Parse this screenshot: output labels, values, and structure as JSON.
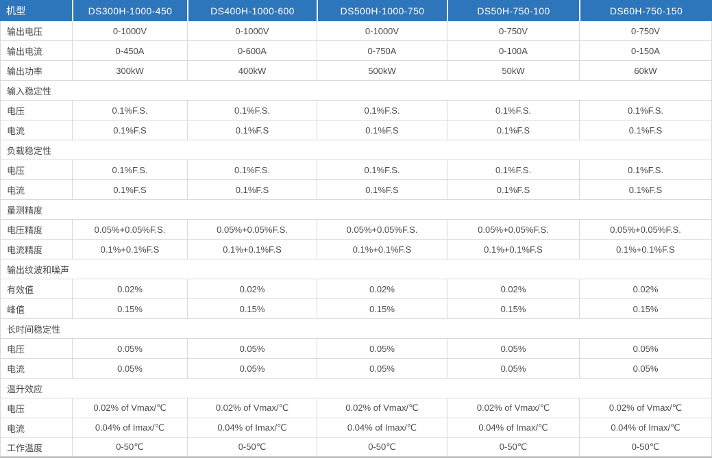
{
  "table": {
    "header": {
      "label": "机型",
      "models": [
        "DS300H-1000-450",
        "DS400H-1000-600",
        "DS500H-1000-750",
        "DS50H-750-100",
        "DS60H-750-150"
      ]
    },
    "rows": [
      {
        "type": "data",
        "label": "输出电压",
        "values": [
          "0-1000V",
          "0-1000V",
          "0-1000V",
          "0-750V",
          "0-750V"
        ]
      },
      {
        "type": "data",
        "label": "输出电流",
        "values": [
          "0-450A",
          "0-600A",
          "0-750A",
          "0-100A",
          "0-150A"
        ]
      },
      {
        "type": "data",
        "label": "输出功率",
        "values": [
          "300kW",
          "400kW",
          "500kW",
          "50kW",
          "60kW"
        ]
      },
      {
        "type": "section",
        "label": "输入稳定性"
      },
      {
        "type": "data",
        "label": "电压",
        "values": [
          "0.1%F.S.",
          "0.1%F.S.",
          "0.1%F.S.",
          "0.1%F.S.",
          "0.1%F.S."
        ]
      },
      {
        "type": "data",
        "label": "电流",
        "values": [
          "0.1%F.S",
          "0.1%F.S",
          "0.1%F.S",
          "0.1%F.S",
          "0.1%F.S"
        ]
      },
      {
        "type": "section",
        "label": "负载稳定性"
      },
      {
        "type": "data",
        "label": "电压",
        "values": [
          "0.1%F.S.",
          "0.1%F.S.",
          "0.1%F.S.",
          "0.1%F.S.",
          "0.1%F.S."
        ]
      },
      {
        "type": "data",
        "label": "电流",
        "values": [
          "0.1%F.S",
          "0.1%F.S",
          "0.1%F.S",
          "0.1%F.S",
          "0.1%F.S"
        ]
      },
      {
        "type": "section",
        "label": "量测精度"
      },
      {
        "type": "data",
        "label": "电压精度",
        "values": [
          "0.05%+0.05%F.S.",
          "0.05%+0.05%F.S.",
          "0.05%+0.05%F.S.",
          "0.05%+0.05%F.S.",
          "0.05%+0.05%F.S."
        ]
      },
      {
        "type": "data",
        "label": "电流精度",
        "values": [
          "0.1%+0.1%F.S",
          "0.1%+0.1%F.S",
          "0.1%+0.1%F.S",
          "0.1%+0.1%F.S",
          "0.1%+0.1%F.S"
        ]
      },
      {
        "type": "section",
        "label": "输出纹波和噪声"
      },
      {
        "type": "data",
        "label": "有效值",
        "values": [
          "0.02%",
          "0.02%",
          "0.02%",
          "0.02%",
          "0.02%"
        ]
      },
      {
        "type": "data",
        "label": "峰值",
        "values": [
          "0.15%",
          "0.15%",
          "0.15%",
          "0.15%",
          "0.15%"
        ]
      },
      {
        "type": "section",
        "label": "长时间稳定性"
      },
      {
        "type": "data",
        "label": "电压",
        "values": [
          "0.05%",
          "0.05%",
          "0.05%",
          "0.05%",
          "0.05%"
        ]
      },
      {
        "type": "data",
        "label": "电流",
        "values": [
          "0.05%",
          "0.05%",
          "0.05%",
          "0.05%",
          "0.05%"
        ]
      },
      {
        "type": "section",
        "label": "温升效应"
      },
      {
        "type": "data",
        "label": "电压",
        "values": [
          "0.02% of Vmax/℃",
          "0.02% of Vmax/℃",
          "0.02% of Vmax/℃",
          "0.02% of Vmax/℃",
          "0.02% of Vmax/℃"
        ]
      },
      {
        "type": "data",
        "label": "电流",
        "values": [
          "0.04% of Imax/℃",
          "0.04% of Imax/℃",
          "0.04% of Imax/℃",
          "0.04% of Imax/℃",
          "0.04% of Imax/℃"
        ]
      },
      {
        "type": "data",
        "label": "工作温度",
        "values": [
          "0-50℃",
          "0-50℃",
          "0-50℃",
          "0-50℃",
          "0-50℃"
        ]
      }
    ],
    "colors": {
      "header_bg": "#2E76BC",
      "header_text": "#FFFFFF",
      "body_text": "#4A4A4A",
      "border": "#D9D9D9",
      "bottom_border": "#B9B9B9"
    }
  }
}
